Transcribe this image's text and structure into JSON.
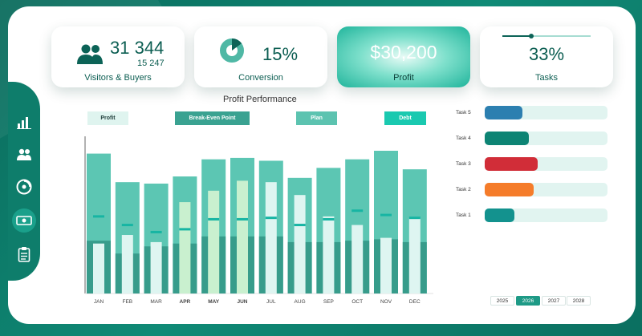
{
  "kpis": {
    "visitors": {
      "value": "31 344",
      "sub": "15 247",
      "label": "Visitors & Buyers"
    },
    "conversion": {
      "value": "15%",
      "label": "Conversion",
      "fraction": 0.15
    },
    "profit": {
      "value": "$30,200",
      "label": "Profit"
    },
    "tasks": {
      "value": "33%",
      "label": "Tasks",
      "fraction": 0.33
    }
  },
  "nav": [
    "chart-icon",
    "users-icon",
    "disc-icon",
    "money-icon",
    "clipboard-icon"
  ],
  "chart_data": {
    "type": "bar",
    "title": "Profit Performance",
    "legend": [
      "Profit",
      "Break-Even Point",
      "Plan",
      "Debt"
    ],
    "categories": [
      "JAN",
      "FEB",
      "MAR",
      "APR",
      "MAY",
      "JUN",
      "JUL",
      "AUG",
      "SEP",
      "OCT",
      "NOV",
      "DEC"
    ],
    "bold_categories": [
      "APR",
      "MAY",
      "JUN"
    ],
    "ylim": [
      0,
      100
    ],
    "series": [
      {
        "name": "Plan",
        "values": [
          98,
          78,
          77,
          82,
          94,
          95,
          93,
          81,
          88,
          94,
          100,
          87
        ]
      },
      {
        "name": "Break-Even Point",
        "values": [
          37,
          28,
          33,
          35,
          40,
          40,
          40,
          36,
          36,
          37,
          38,
          36
        ]
      },
      {
        "name": "Profit",
        "values": [
          35,
          41,
          36,
          64,
          72,
          79,
          78,
          69,
          54,
          48,
          39,
          53
        ]
      },
      {
        "name": "Debt",
        "values": [
          54,
          48,
          43,
          45,
          52,
          52,
          53,
          48,
          52,
          58,
          55,
          53
        ]
      }
    ]
  },
  "tasks_chart": {
    "type": "bar",
    "items": [
      {
        "label": "Task 5",
        "value": 31,
        "color": "#2c7fb0"
      },
      {
        "label": "Task 4",
        "value": 36,
        "color": "#0d8474"
      },
      {
        "label": "Task 3",
        "value": 43,
        "color": "#d12d38"
      },
      {
        "label": "Task 2",
        "value": 40,
        "color": "#f57c2a"
      },
      {
        "label": "Task 1",
        "value": 24,
        "color": "#13928e"
      }
    ]
  },
  "years": [
    "2025",
    "2026",
    "2027",
    "2028"
  ],
  "active_year": "2026"
}
